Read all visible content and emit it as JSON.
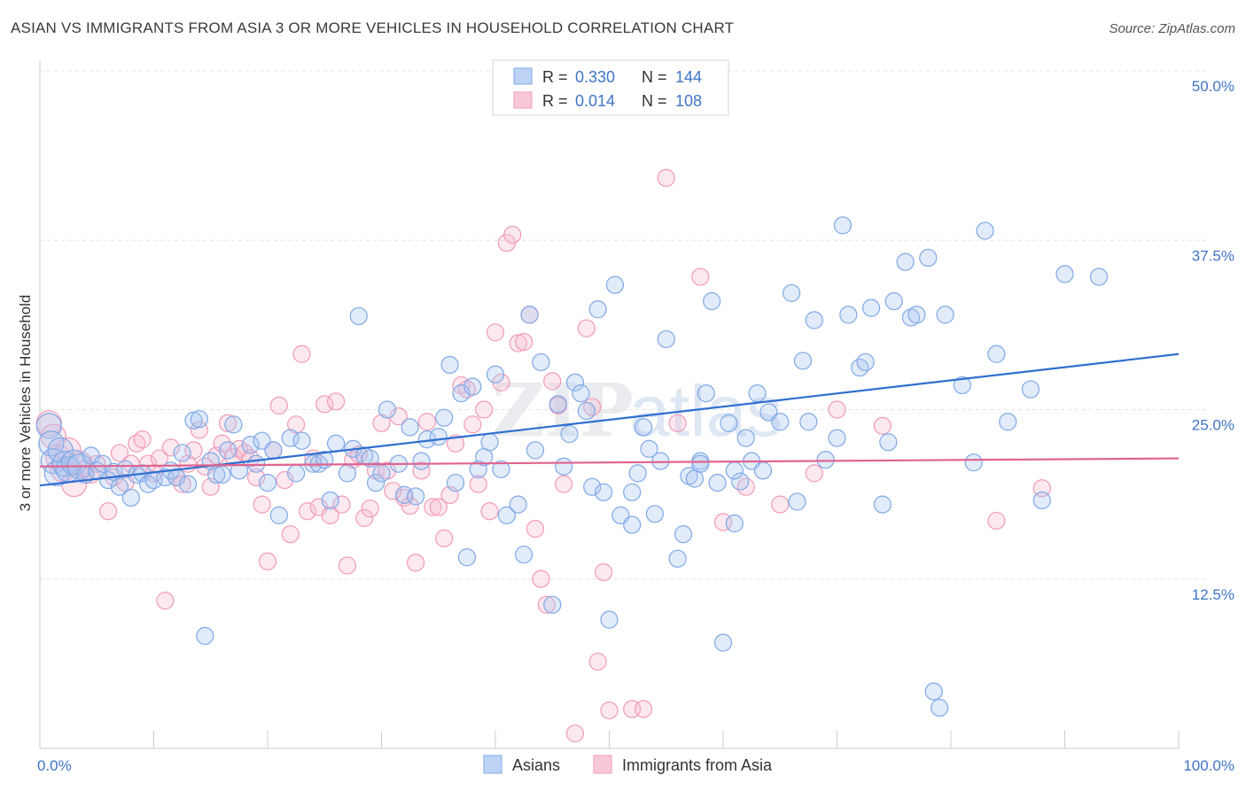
{
  "title": "ASIAN VS IMMIGRANTS FROM ASIA 3 OR MORE VEHICLES IN HOUSEHOLD CORRELATION CHART",
  "source": "Source: ZipAtlas.com",
  "watermark": {
    "zip": "ZIP",
    "atlas": "atlas"
  },
  "chart_data": {
    "type": "scatter",
    "ylabel": "3 or more Vehicles in Household",
    "xlim": [
      0,
      100
    ],
    "ylim": [
      0,
      50
    ],
    "x_tick_labels": [
      {
        "value": 0,
        "label": "0.0%"
      },
      {
        "value": 100,
        "label": "100.0%"
      }
    ],
    "y_tick_labels": [
      {
        "value": 12.5,
        "label": "12.5%"
      },
      {
        "value": 25,
        "label": "25.0%"
      },
      {
        "value": 37.5,
        "label": "37.5%"
      },
      {
        "value": 50,
        "label": "50.0%"
      }
    ],
    "grid": "horizontal dashed",
    "legend_top": [
      {
        "r_label": "R =",
        "r_value": "0.330",
        "n_label": "N =",
        "n_value": "144",
        "color": "#7fa8e6"
      },
      {
        "r_label": "R =",
        "r_value": "0.014",
        "n_label": "N =",
        "n_value": "108",
        "color": "#f29ab8"
      }
    ],
    "series": [
      {
        "name": "Asians",
        "color": "#7fa8e6",
        "line_color": "#2f6fd0",
        "trend": [
          [
            0,
            19.4
          ],
          [
            100,
            29.1
          ]
        ],
        "points": [
          [
            0.8,
            23.8
          ],
          [
            1.0,
            22.5
          ],
          [
            1.2,
            21.2
          ],
          [
            1.5,
            20.3
          ],
          [
            1.8,
            22.0
          ],
          [
            2.2,
            21.0
          ],
          [
            2.5,
            20.6
          ],
          [
            3.0,
            21.1
          ],
          [
            3.5,
            20.8
          ],
          [
            4.0,
            20.2
          ],
          [
            4.5,
            21.6
          ],
          [
            5.0,
            20.5
          ],
          [
            5.5,
            21.0
          ],
          [
            6.0,
            19.8
          ],
          [
            6.5,
            20.4
          ],
          [
            7.0,
            19.3
          ],
          [
            7.5,
            20.6
          ],
          [
            8.0,
            18.5
          ],
          [
            8.5,
            20.2
          ],
          [
            9.0,
            20.3
          ],
          [
            9.5,
            19.5
          ],
          [
            10.0,
            19.8
          ],
          [
            11.0,
            20.0
          ],
          [
            11.5,
            20.5
          ],
          [
            12.0,
            20.0
          ],
          [
            12.5,
            21.8
          ],
          [
            13.0,
            19.5
          ],
          [
            13.5,
            24.2
          ],
          [
            14.0,
            24.3
          ],
          [
            15.0,
            21.2
          ],
          [
            15.5,
            20.2
          ],
          [
            16.0,
            20.2
          ],
          [
            16.5,
            22.0
          ],
          [
            17.0,
            23.9
          ],
          [
            17.5,
            20.5
          ],
          [
            18.5,
            22.4
          ],
          [
            19.0,
            21.0
          ],
          [
            19.5,
            22.7
          ],
          [
            20.0,
            19.6
          ],
          [
            20.5,
            22.0
          ],
          [
            21.0,
            17.2
          ],
          [
            22.0,
            22.9
          ],
          [
            22.5,
            20.3
          ],
          [
            23.0,
            22.7
          ],
          [
            24.0,
            21.0
          ],
          [
            24.5,
            21.0
          ],
          [
            25.0,
            21.3
          ],
          [
            25.5,
            18.3
          ],
          [
            26.0,
            22.5
          ],
          [
            27.0,
            20.3
          ],
          [
            27.5,
            22.1
          ],
          [
            28.0,
            31.9
          ],
          [
            28.5,
            21.6
          ],
          [
            29.0,
            21.4
          ],
          [
            29.5,
            19.6
          ],
          [
            30.0,
            20.3
          ],
          [
            30.5,
            25.0
          ],
          [
            31.5,
            21.0
          ],
          [
            32.0,
            18.7
          ],
          [
            32.5,
            23.7
          ],
          [
            33.0,
            18.6
          ],
          [
            33.5,
            21.2
          ],
          [
            34.0,
            22.8
          ],
          [
            35.0,
            23.0
          ],
          [
            35.5,
            24.4
          ],
          [
            36.0,
            28.3
          ],
          [
            36.5,
            19.6
          ],
          [
            37.0,
            26.2
          ],
          [
            37.5,
            14.1
          ],
          [
            38.0,
            26.7
          ],
          [
            38.5,
            20.6
          ],
          [
            39.0,
            21.5
          ],
          [
            39.5,
            22.6
          ],
          [
            40.0,
            27.6
          ],
          [
            40.5,
            20.6
          ],
          [
            41.0,
            17.2
          ],
          [
            42.0,
            18.0
          ],
          [
            42.5,
            14.3
          ],
          [
            43.0,
            32.0
          ],
          [
            43.5,
            22.0
          ],
          [
            44.0,
            28.5
          ],
          [
            45.0,
            10.6
          ],
          [
            45.5,
            25.4
          ],
          [
            46.0,
            20.8
          ],
          [
            46.5,
            23.2
          ],
          [
            47.0,
            27.0
          ],
          [
            47.5,
            26.2
          ],
          [
            48.0,
            24.9
          ],
          [
            48.5,
            19.3
          ],
          [
            49.0,
            32.4
          ],
          [
            49.5,
            18.9
          ],
          [
            50.0,
            9.5
          ],
          [
            50.5,
            34.2
          ],
          [
            51.0,
            17.2
          ],
          [
            52.0,
            18.9
          ],
          [
            52.5,
            20.3
          ],
          [
            53.0,
            23.7
          ],
          [
            53.5,
            22.1
          ],
          [
            54.0,
            17.3
          ],
          [
            54.5,
            21.2
          ],
          [
            55.0,
            30.2
          ],
          [
            56.0,
            14.0
          ],
          [
            56.5,
            15.8
          ],
          [
            57.0,
            20.1
          ],
          [
            57.5,
            19.9
          ],
          [
            58.0,
            21.2
          ],
          [
            58.5,
            26.2
          ],
          [
            59.0,
            33.0
          ],
          [
            59.5,
            19.6
          ],
          [
            60.0,
            7.8
          ],
          [
            60.5,
            24.0
          ],
          [
            61.0,
            16.6
          ],
          [
            61.5,
            19.7
          ],
          [
            62.0,
            22.9
          ],
          [
            62.5,
            21.2
          ],
          [
            63.0,
            26.2
          ],
          [
            63.5,
            20.5
          ],
          [
            64.0,
            24.8
          ],
          [
            65.0,
            24.1
          ],
          [
            66.0,
            33.6
          ],
          [
            66.5,
            18.2
          ],
          [
            67.0,
            28.6
          ],
          [
            67.5,
            24.1
          ],
          [
            68.0,
            31.6
          ],
          [
            69.0,
            21.3
          ],
          [
            70.0,
            22.9
          ],
          [
            70.5,
            38.6
          ],
          [
            71.0,
            32.0
          ],
          [
            72.0,
            28.1
          ],
          [
            72.5,
            28.5
          ],
          [
            73.0,
            32.5
          ],
          [
            74.0,
            18.0
          ],
          [
            74.5,
            22.6
          ],
          [
            75.0,
            33.0
          ],
          [
            76.0,
            35.9
          ],
          [
            76.5,
            31.8
          ],
          [
            77.0,
            32.0
          ],
          [
            78.0,
            36.2
          ],
          [
            78.5,
            4.2
          ],
          [
            79.0,
            3.0
          ],
          [
            79.5,
            32.0
          ],
          [
            81.0,
            26.8
          ],
          [
            82.0,
            21.1
          ],
          [
            83.0,
            38.2
          ],
          [
            84.0,
            29.1
          ],
          [
            85.0,
            24.1
          ],
          [
            87.0,
            26.5
          ],
          [
            88.0,
            18.3
          ],
          [
            90.0,
            35.0
          ],
          [
            93.0,
            34.8
          ],
          [
            14.5,
            8.3
          ],
          [
            52.0,
            16.5
          ],
          [
            58.0,
            21.0
          ],
          [
            61.0,
            20.5
          ]
        ]
      },
      {
        "name": "Immigrants from Asia",
        "color": "#f29ab8",
        "line_color": "#e0638f",
        "trend": [
          [
            0,
            20.8
          ],
          [
            100,
            21.4
          ]
        ],
        "points": [
          [
            0.8,
            24.0
          ],
          [
            1.2,
            23.0
          ],
          [
            1.6,
            21.5
          ],
          [
            2.0,
            20.6
          ],
          [
            2.5,
            22.0
          ],
          [
            3.0,
            19.5
          ],
          [
            3.5,
            21.0
          ],
          [
            4.0,
            20.6
          ],
          [
            4.5,
            20.2
          ],
          [
            5.0,
            21.0
          ],
          [
            6.0,
            17.5
          ],
          [
            6.5,
            20.0
          ],
          [
            7.0,
            21.8
          ],
          [
            7.5,
            19.6
          ],
          [
            8.0,
            21.0
          ],
          [
            8.5,
            22.5
          ],
          [
            9.0,
            22.8
          ],
          [
            9.5,
            21.0
          ],
          [
            10.0,
            20.3
          ],
          [
            10.5,
            21.4
          ],
          [
            11.0,
            10.9
          ],
          [
            11.5,
            22.2
          ],
          [
            12.0,
            20.0
          ],
          [
            12.5,
            19.5
          ],
          [
            13.0,
            21.0
          ],
          [
            13.5,
            22.0
          ],
          [
            14.0,
            23.5
          ],
          [
            14.5,
            20.8
          ],
          [
            15.0,
            19.3
          ],
          [
            15.5,
            21.6
          ],
          [
            16.0,
            22.5
          ],
          [
            16.5,
            24.0
          ],
          [
            17.0,
            21.5
          ],
          [
            17.5,
            22.1
          ],
          [
            18.0,
            21.8
          ],
          [
            18.5,
            21.4
          ],
          [
            19.0,
            20.0
          ],
          [
            19.5,
            18.0
          ],
          [
            20.0,
            13.8
          ],
          [
            20.5,
            22.0
          ],
          [
            21.0,
            25.3
          ],
          [
            21.5,
            19.8
          ],
          [
            22.0,
            15.8
          ],
          [
            22.5,
            23.9
          ],
          [
            23.0,
            29.1
          ],
          [
            23.5,
            17.5
          ],
          [
            24.0,
            21.4
          ],
          [
            24.5,
            17.8
          ],
          [
            25.0,
            25.4
          ],
          [
            25.5,
            17.2
          ],
          [
            26.0,
            25.6
          ],
          [
            26.5,
            18.0
          ],
          [
            27.0,
            13.5
          ],
          [
            27.5,
            21.3
          ],
          [
            28.0,
            21.7
          ],
          [
            28.5,
            17.0
          ],
          [
            29.0,
            17.7
          ],
          [
            29.5,
            20.5
          ],
          [
            30.0,
            24.0
          ],
          [
            30.5,
            20.5
          ],
          [
            31.0,
            19.0
          ],
          [
            31.5,
            24.5
          ],
          [
            32.0,
            18.5
          ],
          [
            32.5,
            17.9
          ],
          [
            33.0,
            13.7
          ],
          [
            33.5,
            20.5
          ],
          [
            34.0,
            24.1
          ],
          [
            34.5,
            17.8
          ],
          [
            35.0,
            17.8
          ],
          [
            35.5,
            15.5
          ],
          [
            36.0,
            18.7
          ],
          [
            36.5,
            22.5
          ],
          [
            37.0,
            26.8
          ],
          [
            37.5,
            26.5
          ],
          [
            38.0,
            23.9
          ],
          [
            38.5,
            19.5
          ],
          [
            39.0,
            25.0
          ],
          [
            39.5,
            17.5
          ],
          [
            40.0,
            30.7
          ],
          [
            40.5,
            27.0
          ],
          [
            41.0,
            37.3
          ],
          [
            41.5,
            37.9
          ],
          [
            42.0,
            29.9
          ],
          [
            42.5,
            30.0
          ],
          [
            43.0,
            32.0
          ],
          [
            43.5,
            16.2
          ],
          [
            44.0,
            12.5
          ],
          [
            44.5,
            10.6
          ],
          [
            45.0,
            27.1
          ],
          [
            45.5,
            25.3
          ],
          [
            46.0,
            19.5
          ],
          [
            47.0,
            1.1
          ],
          [
            48.0,
            31.0
          ],
          [
            48.5,
            25.2
          ],
          [
            49.0,
            6.4
          ],
          [
            49.5,
            13.0
          ],
          [
            50.0,
            2.8
          ],
          [
            52.0,
            2.9
          ],
          [
            53.0,
            2.9
          ],
          [
            55.0,
            42.1
          ],
          [
            56.0,
            24.0
          ],
          [
            58.0,
            34.8
          ],
          [
            60.0,
            16.7
          ],
          [
            62.0,
            19.3
          ],
          [
            65.0,
            18.0
          ],
          [
            68.0,
            20.3
          ],
          [
            70.0,
            25.0
          ],
          [
            74.0,
            23.8
          ],
          [
            84.0,
            16.8
          ],
          [
            88.0,
            19.2
          ]
        ]
      }
    ]
  },
  "legend_bottom": [
    {
      "label": "Asians",
      "color": "#7fa8e6"
    },
    {
      "label": "Immigrants from Asia",
      "color": "#f29ab8"
    }
  ]
}
